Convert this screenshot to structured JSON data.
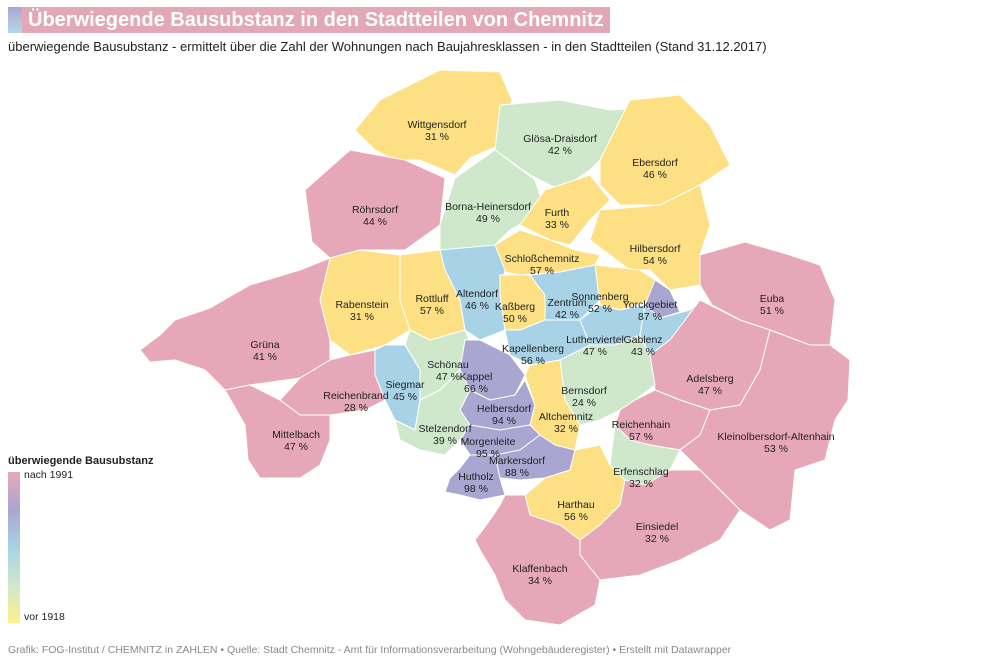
{
  "title": "Überwiegende Bausubstanz in den Stadtteilen von Chemnitz",
  "subtitle": "überwiegende Bausubstanz - ermittelt über die Zahl der Wohnungen nach Baujahresklassen - in den Stadtteilen (Stand 31.12.2017)",
  "legend": {
    "title": "überwiegende Bausubstanz",
    "top_label": "nach 1991",
    "bottom_label": "vor 1918"
  },
  "footer": "Grafik: FOG-Institut / CHEMNITZ in ZAHLEN • Quelle: Stadt Chemnitz - Amt für Informationsverarbeitung (Wohngebäuderegister) • Erstellt mit Datawrapper",
  "colors": {
    "nach_1991": "#e6a8b8",
    "category_2": "#a9a6d2",
    "category_3": "#a8d3e6",
    "category_4": "#cfe8cc",
    "vor_1918": "#fde083"
  },
  "districts": [
    {
      "name": "Wittgensdorf",
      "pct": "31 %"
    },
    {
      "name": "Glösa-Draisdorf",
      "pct": "42 %"
    },
    {
      "name": "Ebersdorf",
      "pct": "46 %"
    },
    {
      "name": "Röhrsdorf",
      "pct": "44 %"
    },
    {
      "name": "Borna-Heinersdorf",
      "pct": "49 %"
    },
    {
      "name": "Furth",
      "pct": "33 %"
    },
    {
      "name": "Hilbersdorf",
      "pct": "54 %"
    },
    {
      "name": "Schloßchemnitz",
      "pct": "57 %"
    },
    {
      "name": "Rabenstein",
      "pct": "31 %"
    },
    {
      "name": "Rottluff",
      "pct": "57 %"
    },
    {
      "name": "Altendorf",
      "pct": "46 %"
    },
    {
      "name": "Kaßberg",
      "pct": "50 %"
    },
    {
      "name": "Zentrum",
      "pct": "42 %"
    },
    {
      "name": "Sonnenberg",
      "pct": "52 %"
    },
    {
      "name": "Yorckgebiet",
      "pct": "87 %"
    },
    {
      "name": "Euba",
      "pct": "51 %"
    },
    {
      "name": "Lutherviertel",
      "pct": "47 %"
    },
    {
      "name": "Gablenz",
      "pct": "43 %"
    },
    {
      "name": "Kapellenberg",
      "pct": "56 %"
    },
    {
      "name": "Grüna",
      "pct": "41 %"
    },
    {
      "name": "Schönau",
      "pct": "47 %"
    },
    {
      "name": "Siegmar",
      "pct": "45 %"
    },
    {
      "name": "Kappel",
      "pct": "66 %"
    },
    {
      "name": "Adelsberg",
      "pct": "47 %"
    },
    {
      "name": "Reichenbrand",
      "pct": "28 %"
    },
    {
      "name": "Bernsdorf",
      "pct": "24 %"
    },
    {
      "name": "Helbersdorf",
      "pct": "94 %"
    },
    {
      "name": "Altchemnitz",
      "pct": "32 %"
    },
    {
      "name": "Mittelbach",
      "pct": "47 %"
    },
    {
      "name": "Stelzendorf",
      "pct": "39 %"
    },
    {
      "name": "Reichenhain",
      "pct": "57 %"
    },
    {
      "name": "Kleinolbersdorf-Altenhain",
      "pct": "53 %"
    },
    {
      "name": "Morgenleite",
      "pct": "95 %"
    },
    {
      "name": "Markersdorf",
      "pct": "88 %"
    },
    {
      "name": "Erfenschlag",
      "pct": "32 %"
    },
    {
      "name": "Hutholz",
      "pct": "98 %"
    },
    {
      "name": "Harthau",
      "pct": "56 %"
    },
    {
      "name": "Einsiedel",
      "pct": "32 %"
    },
    {
      "name": "Klaffenbach",
      "pct": "34 %"
    }
  ]
}
